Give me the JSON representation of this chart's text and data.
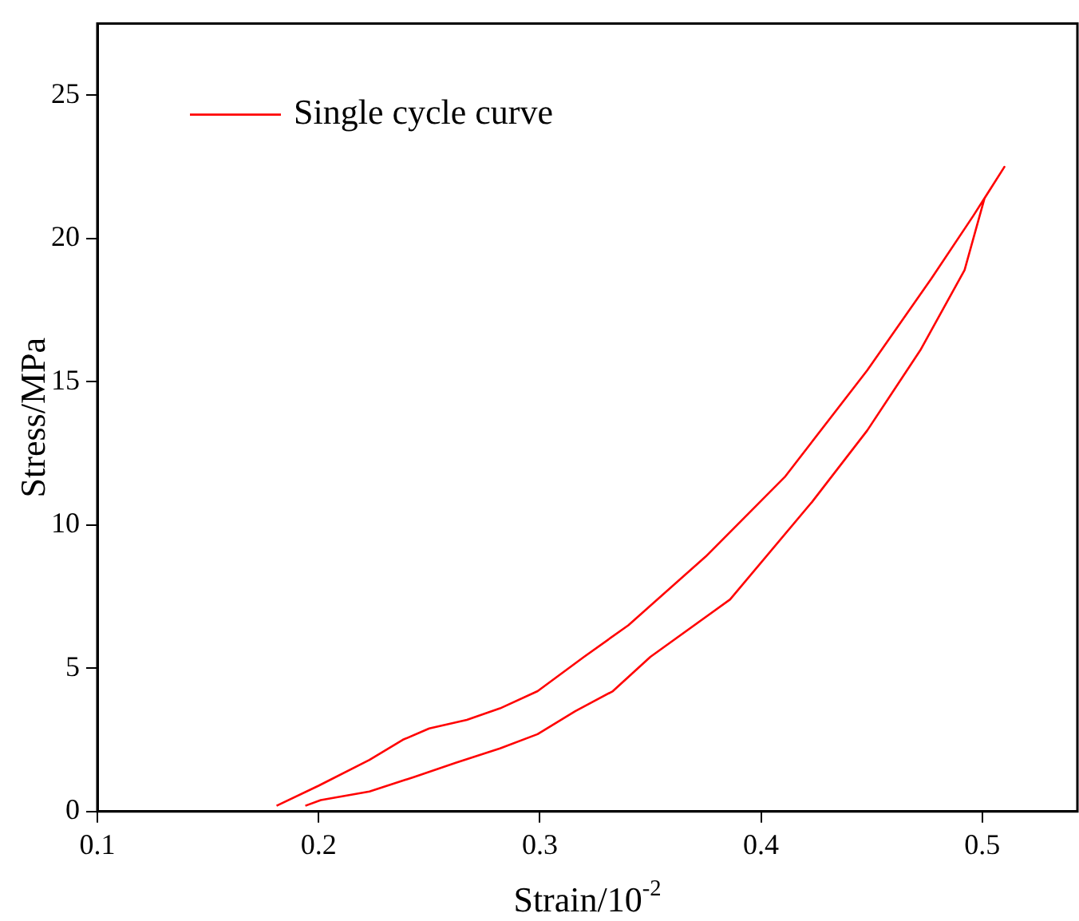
{
  "chart_data": {
    "type": "line",
    "xlabel": "Strain/10$^{-2}$",
    "ylabel": "Stress/MPa",
    "xlim": [
      0.1,
      0.543
    ],
    "xticks": [
      0.1,
      0.2,
      0.3,
      0.4,
      0.5
    ],
    "ylim": [
      0,
      27.5
    ],
    "yticks": [
      0,
      5,
      10,
      15,
      20,
      25
    ],
    "grid": false,
    "legend": "top left",
    "marker": "none",
    "line_style": "solid",
    "series": [
      {
        "name": "Single cycle curve",
        "color": "#ff0000",
        "x": [
          0.181,
          0.2,
          0.223,
          0.238,
          0.25,
          0.267,
          0.282,
          0.299,
          0.32,
          0.34,
          0.375,
          0.411,
          0.448,
          0.477,
          0.496,
          0.51,
          0.501,
          0.492,
          0.472,
          0.448,
          0.423,
          0.386,
          0.35,
          0.333,
          0.316,
          0.299,
          0.282,
          0.262,
          0.243,
          0.223,
          0.201,
          0.194
        ],
        "values": [
          0.2,
          0.9,
          1.8,
          2.5,
          2.9,
          3.2,
          3.6,
          4.2,
          5.4,
          6.5,
          8.9,
          11.7,
          15.4,
          18.6,
          20.8,
          22.5,
          21.4,
          18.9,
          16.1,
          13.3,
          10.8,
          7.4,
          5.4,
          4.2,
          3.5,
          2.7,
          2.2,
          1.7,
          1.2,
          0.7,
          0.4,
          0.2
        ]
      }
    ]
  }
}
